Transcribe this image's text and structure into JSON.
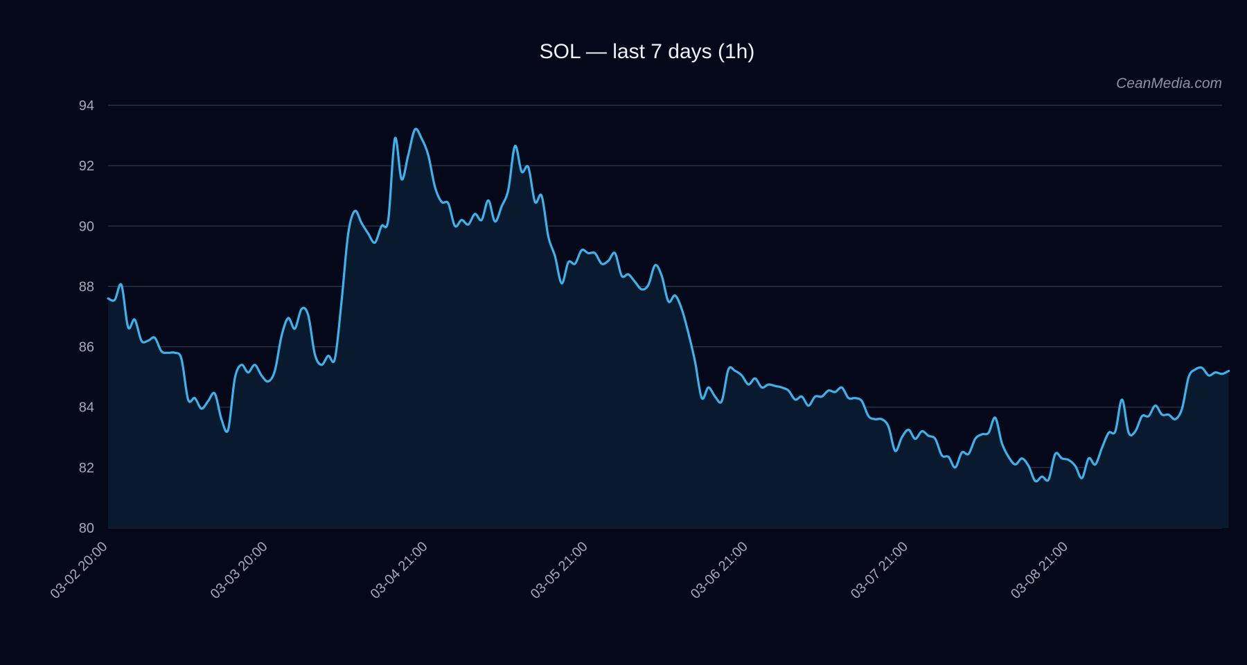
{
  "chart": {
    "title": "SOL — last 7 days (1h)",
    "watermark": "CeanMedia.com"
  },
  "colors": {
    "background": "#050818",
    "line": "#3bb4ee",
    "area_fill": "#0a1a2e",
    "grid": "#2f3848",
    "text": "#eef2f8",
    "tick_text": "#a3abba",
    "watermark": "#8a93a5"
  },
  "chart_data": {
    "type": "area",
    "title": "SOL — last 7 days (1h)",
    "xlabel": "",
    "ylabel": "",
    "ylim": [
      80,
      94
    ],
    "yticks": [
      80,
      82,
      84,
      86,
      88,
      90,
      92,
      94
    ],
    "grid": true,
    "legend": "none",
    "xticks": [
      {
        "label": "03-02 20:00",
        "hour": 0
      },
      {
        "label": "03-03 20:00",
        "hour": 24
      },
      {
        "label": "03-04 21:00",
        "hour": 48
      },
      {
        "label": "03-05 21:00",
        "hour": 72
      },
      {
        "label": "03-06 21:00",
        "hour": 96
      },
      {
        "label": "03-07 21:00",
        "hour": 120
      },
      {
        "label": "03-08 21:00",
        "hour": 144
      }
    ],
    "xlim_hours": [
      0,
      167
    ],
    "series": [
      {
        "values": [
          87.6,
          87.55,
          88.05,
          86.65,
          86.9,
          86.2,
          86.2,
          86.3,
          85.85,
          85.8,
          85.8,
          85.6,
          84.25,
          84.3,
          83.95,
          84.2,
          84.45,
          83.6,
          83.25,
          84.95,
          85.4,
          85.15,
          85.4,
          85.05,
          84.85,
          85.2,
          86.35,
          86.95,
          86.6,
          87.25,
          87.05,
          85.75,
          85.4,
          85.7,
          85.6,
          87.5,
          89.75,
          90.5,
          90.1,
          89.75,
          89.45,
          90.0,
          90.2,
          92.9,
          91.55,
          92.35,
          93.2,
          92.9,
          92.35,
          91.3,
          90.8,
          90.75,
          90.0,
          90.2,
          90.05,
          90.4,
          90.2,
          90.85,
          90.15,
          90.65,
          91.2,
          92.65,
          91.8,
          91.95,
          90.8,
          91.0,
          89.65,
          89.0,
          88.1,
          88.8,
          88.75,
          89.2,
          89.1,
          89.1,
          88.75,
          88.85,
          89.1,
          88.35,
          88.4,
          88.15,
          87.9,
          88.05,
          88.7,
          88.35,
          87.5,
          87.7,
          87.25,
          86.45,
          85.5,
          84.3,
          84.65,
          84.35,
          84.2,
          85.25,
          85.2,
          85.05,
          84.75,
          84.95,
          84.65,
          84.75,
          84.7,
          84.65,
          84.55,
          84.25,
          84.35,
          84.05,
          84.35,
          84.35,
          84.55,
          84.5,
          84.65,
          84.3,
          84.3,
          84.2,
          83.7,
          83.6,
          83.6,
          83.35,
          82.55,
          83.0,
          83.25,
          82.95,
          83.2,
          83.05,
          82.95,
          82.4,
          82.35,
          82.0,
          82.5,
          82.45,
          82.95,
          83.1,
          83.15,
          83.65,
          82.8,
          82.35,
          82.1,
          82.3,
          82.05,
          81.55,
          81.7,
          81.6,
          82.45,
          82.3,
          82.25,
          82.05,
          81.65,
          82.3,
          82.1,
          82.65,
          83.15,
          83.2,
          84.25,
          83.15,
          83.2,
          83.7,
          83.7,
          84.05,
          83.75,
          83.75,
          83.6,
          83.95,
          85.0,
          85.25,
          85.3,
          85.05,
          85.15,
          85.1,
          85.2
        ]
      }
    ]
  }
}
